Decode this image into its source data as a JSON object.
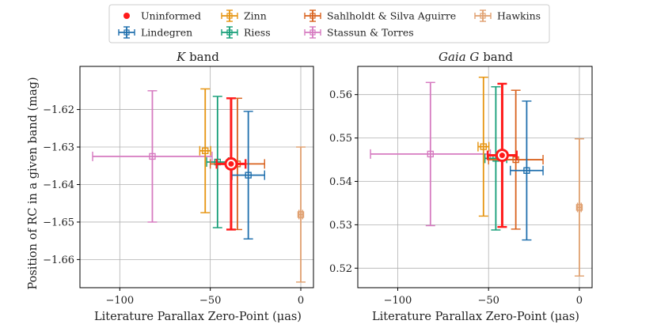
{
  "figure": {
    "ylabel": "Position of RC in a given band (mag)",
    "legend_position": "top-center"
  },
  "legend": [
    {
      "label": "Uninformed",
      "color": "#ff1a1a",
      "kind": "dot"
    },
    {
      "label": "Zinn",
      "color": "#e69410",
      "kind": "errorbar"
    },
    {
      "label": "Sahlholdt & Silva Aguirre",
      "color": "#d9621e",
      "kind": "errorbar"
    },
    {
      "label": "Hawkins",
      "color": "#e0a070",
      "kind": "errorbar"
    },
    {
      "label": "Lindegren",
      "color": "#1f6fad",
      "kind": "errorbar"
    },
    {
      "label": "Riess",
      "color": "#159e78",
      "kind": "errorbar"
    },
    {
      "label": "Stassun & Torres",
      "color": "#d67ac0",
      "kind": "errorbar"
    }
  ],
  "chart_data": [
    {
      "type": "errorbar",
      "title_italic": "K",
      "title_rest": " band",
      "xlabel": "Literature Parallax Zero-Point (μas)",
      "ylabel": "Position of RC in a given band (mag)",
      "xlim": [
        -122,
        7
      ],
      "ylim": [
        -1.6675,
        -1.6085
      ],
      "xticks": [
        -100,
        -50,
        0
      ],
      "xtick_labels": [
        "−100",
        "−50",
        "0"
      ],
      "yticks": [
        -1.62,
        -1.63,
        -1.64,
        -1.65,
        -1.66
      ],
      "ytick_labels": [
        "−1.62",
        "−1.63",
        "−1.64",
        "−1.65",
        "−1.66"
      ],
      "grid": true,
      "series": [
        {
          "name": "Stassun & Torres",
          "color": "#d67ac0",
          "x": -82,
          "xerr": 33,
          "y": -1.6325,
          "yerr": 0.0175
        },
        {
          "name": "Riess",
          "color": "#159e78",
          "x": -46,
          "xerr": 6,
          "y": -1.634,
          "yerr": 0.0175
        },
        {
          "name": "Zinn",
          "color": "#e69410",
          "x": -52.8,
          "xerr": 3,
          "y": -1.631,
          "yerr": 0.0165
        },
        {
          "name": "Sahlholdt & Silva Aguirre",
          "color": "#d9621e",
          "x": -35,
          "xerr": 15,
          "y": -1.6345,
          "yerr": 0.0175
        },
        {
          "name": "Lindegren",
          "color": "#1f6fad",
          "x": -29,
          "xerr": 9,
          "y": -1.6375,
          "yerr": 0.017
        },
        {
          "name": "Hawkins",
          "color": "#e0a070",
          "x": 0,
          "xerr": 1,
          "y": -1.648,
          "yerr": 0.018
        },
        {
          "name": "Uninformed",
          "color": "#ff1a1a",
          "x": -38.5,
          "xerr": 8,
          "y": -1.6345,
          "yerr": 0.0175,
          "highlight": true
        }
      ]
    },
    {
      "type": "errorbar",
      "title_italic": "Gaia G",
      "title_rest": " band",
      "xlabel": "Literature Parallax Zero-Point (μas)",
      "ylabel": "",
      "xlim": [
        -122,
        7
      ],
      "ylim": [
        0.5155,
        0.5665
      ],
      "xticks": [
        -100,
        -50,
        0
      ],
      "xtick_labels": [
        "−100",
        "−50",
        "0"
      ],
      "yticks": [
        0.52,
        0.53,
        0.54,
        0.55,
        0.56
      ],
      "ytick_labels": [
        "0.52",
        "0.53",
        "0.54",
        "0.55",
        "0.56"
      ],
      "grid": true,
      "series": [
        {
          "name": "Stassun & Torres",
          "color": "#d67ac0",
          "x": -82,
          "xerr": 33,
          "y": 0.5463,
          "yerr": 0.0165
        },
        {
          "name": "Riess",
          "color": "#159e78",
          "x": -46,
          "xerr": 6,
          "y": 0.5453,
          "yerr": 0.0165
        },
        {
          "name": "Zinn",
          "color": "#e69410",
          "x": -52.8,
          "xerr": 3,
          "y": 0.548,
          "yerr": 0.016
        },
        {
          "name": "Sahlholdt & Silva Aguirre",
          "color": "#d9621e",
          "x": -35,
          "xerr": 15,
          "y": 0.545,
          "yerr": 0.016
        },
        {
          "name": "Lindegren",
          "color": "#1f6fad",
          "x": -29,
          "xerr": 9,
          "y": 0.5425,
          "yerr": 0.016
        },
        {
          "name": "Hawkins",
          "color": "#e0a070",
          "x": 0,
          "xerr": 1,
          "y": 0.534,
          "yerr": 0.0158
        },
        {
          "name": "Uninformed",
          "color": "#ff1a1a",
          "x": -42.5,
          "xerr": 8,
          "y": 0.546,
          "yerr": 0.0165,
          "highlight": true
        }
      ]
    }
  ]
}
